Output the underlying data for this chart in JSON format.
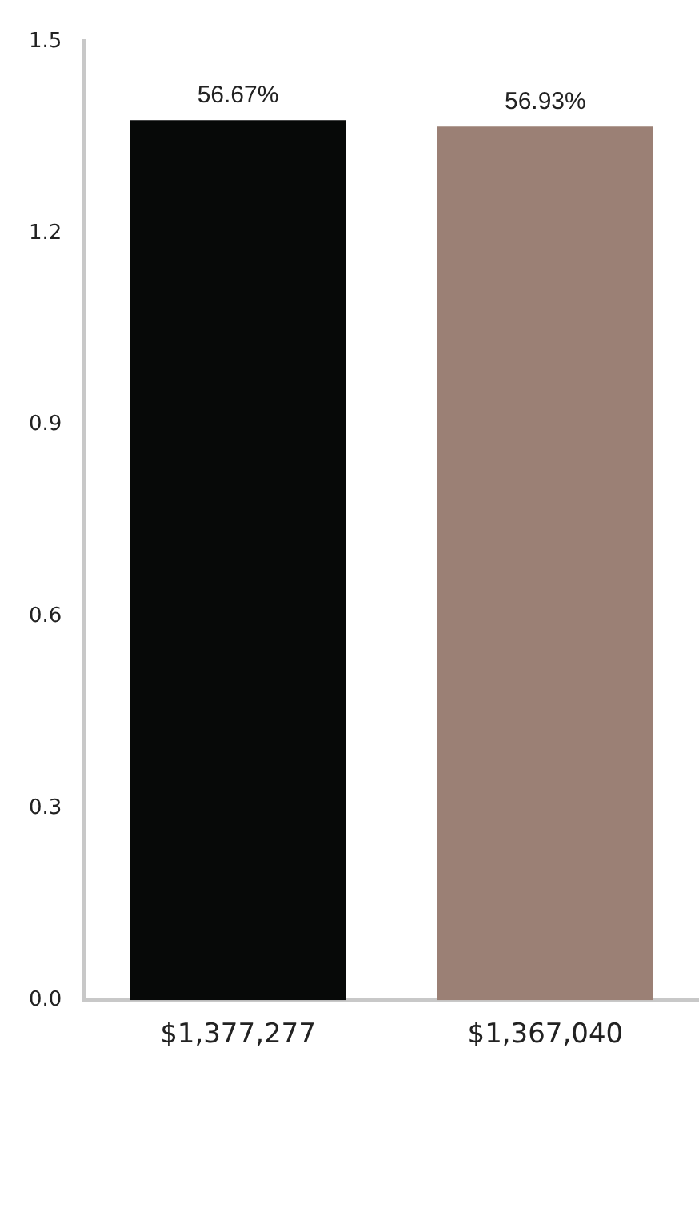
{
  "chart_data": {
    "type": "bar",
    "categories": [
      "$1,377,277",
      "$1,367,040"
    ],
    "values": [
      1.377,
      1.367
    ],
    "colors": [
      "#070908",
      "#9b8075"
    ],
    "annotations": [
      {
        "text": "56.67%",
        "x": "$1,377,277",
        "y": 1.377
      },
      {
        "text": "56.93%",
        "x": "$1,367,040",
        "y": 1.367
      }
    ],
    "ylim": [
      0,
      1.5
    ],
    "yticks": [
      {
        "value": 0,
        "label": "0.0"
      },
      {
        "value": 0.3,
        "label": "0.3"
      },
      {
        "value": 0.6,
        "label": "0.6"
      },
      {
        "value": 0.9,
        "label": "0.9"
      },
      {
        "value": 1.2,
        "label": "1.2"
      },
      {
        "value": 1.5,
        "label": "1.5"
      }
    ],
    "grid": false,
    "legend": false
  }
}
